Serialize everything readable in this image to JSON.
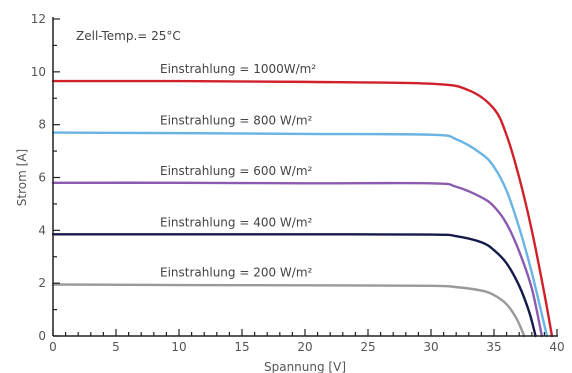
{
  "chart_data": {
    "type": "line",
    "title": "",
    "xlabel": "Spannung [V]",
    "ylabel": "Strom [A]",
    "xlim": [
      0,
      40
    ],
    "ylim": [
      0,
      12
    ],
    "xticks": [
      0,
      5,
      10,
      15,
      20,
      25,
      30,
      35,
      40
    ],
    "yticks": [
      0,
      2,
      4,
      6,
      8,
      10,
      12
    ],
    "grid": false,
    "annotation": "Zell-Temp.= 25°C",
    "series": [
      {
        "name": "Einstrahlung = 1000W/m²",
        "color": "#d0202a",
        "x": [
          0,
          10,
          20,
          30,
          33,
          35,
          36,
          37,
          38,
          39,
          39.6
        ],
        "y": [
          9.65,
          9.65,
          9.62,
          9.55,
          9.3,
          8.6,
          7.6,
          6.0,
          4.0,
          1.6,
          0
        ]
      },
      {
        "name": "Einstrahlung = 800 W/m²",
        "color": "#6ab4e4",
        "x": [
          0,
          10,
          20,
          30,
          32,
          34,
          35,
          36,
          37,
          38,
          39.2
        ],
        "y": [
          7.7,
          7.68,
          7.65,
          7.62,
          7.45,
          6.9,
          6.4,
          5.5,
          4.1,
          2.4,
          0
        ]
      },
      {
        "name": "Einstrahlung = 600 W/m²",
        "color": "#8a5bb0",
        "x": [
          0,
          10,
          20,
          30,
          32,
          34,
          35,
          36,
          37,
          38,
          38.8
        ],
        "y": [
          5.8,
          5.8,
          5.78,
          5.78,
          5.65,
          5.25,
          4.9,
          4.25,
          3.2,
          1.8,
          0
        ]
      },
      {
        "name": "Einstrahlung = 400 W/m²",
        "color": "#141a4a",
        "x": [
          0,
          10,
          20,
          30,
          32,
          34,
          35,
          36,
          37,
          37.8,
          38.3
        ],
        "y": [
          3.85,
          3.85,
          3.85,
          3.84,
          3.78,
          3.55,
          3.25,
          2.75,
          1.9,
          0.9,
          0
        ]
      },
      {
        "name": "Einstrahlung = 200 W/m²",
        "color": "#9a9a9a",
        "x": [
          0,
          10,
          20,
          30,
          32,
          34,
          35,
          36,
          36.8,
          37.4
        ],
        "y": [
          1.95,
          1.93,
          1.92,
          1.9,
          1.85,
          1.72,
          1.55,
          1.2,
          0.65,
          0
        ]
      }
    ]
  }
}
